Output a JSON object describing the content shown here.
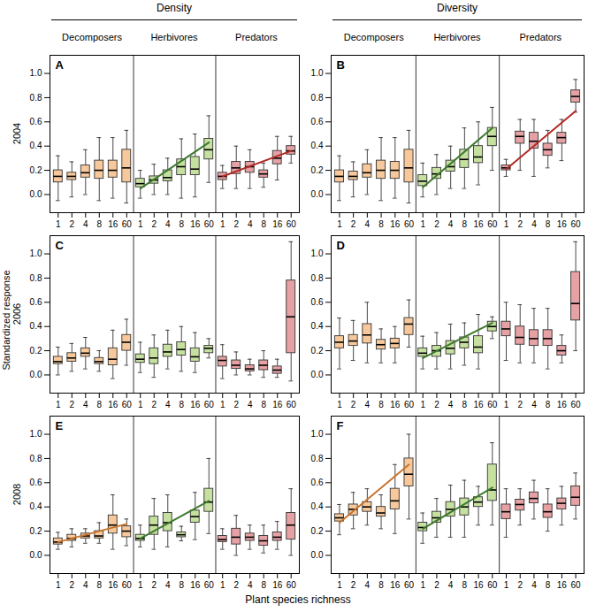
{
  "chart_data": {
    "type": "box",
    "columns": [
      "Density",
      "Diversity"
    ],
    "rows": [
      "2004",
      "2006",
      "2008"
    ],
    "ylabel": "Standardized response",
    "xlabel": "Plant species richness",
    "categories": [
      "1",
      "2",
      "4",
      "8",
      "16",
      "60"
    ],
    "ylim": [
      -0.15,
      1.15
    ],
    "yticks": [
      {
        "value": 0,
        "label": "0.0"
      },
      {
        "value": 0.2,
        "label": "0.2"
      },
      {
        "value": 0.4,
        "label": "0.4"
      },
      {
        "value": 0.6,
        "label": "0.6"
      },
      {
        "value": 0.8,
        "label": "0.8"
      },
      {
        "value": 1,
        "label": "1.0"
      }
    ],
    "groups": [
      {
        "name": "Decomposers",
        "color": "#f7c89b"
      },
      {
        "name": "Herbivores",
        "color": "#c6e0a0"
      },
      {
        "name": "Predators",
        "color": "#e6a1a5"
      }
    ],
    "panels": [
      {
        "title": "A",
        "boxes": [
          {
            "whisker_low": [
              -0.05,
              -0.02,
              0.0,
              -0.05,
              -0.03,
              -0.07
            ],
            "q1": [
              0.1,
              0.12,
              0.14,
              0.13,
              0.14,
              0.1
            ],
            "median": [
              0.15,
              0.15,
              0.18,
              0.2,
              0.2,
              0.22
            ],
            "q3": [
              0.2,
              0.18,
              0.24,
              0.28,
              0.28,
              0.37
            ],
            "whisker_high": [
              0.32,
              0.27,
              0.37,
              0.47,
              0.47,
              0.53
            ]
          },
          {
            "whisker_low": [
              -0.03,
              0.0,
              0.0,
              -0.03,
              -0.02,
              0.1
            ],
            "q1": [
              0.06,
              0.09,
              0.11,
              0.16,
              0.16,
              0.29
            ],
            "median": [
              0.09,
              0.12,
              0.14,
              0.23,
              0.21,
              0.37
            ],
            "q3": [
              0.13,
              0.15,
              0.2,
              0.29,
              0.31,
              0.46
            ],
            "whisker_high": [
              0.2,
              0.25,
              0.3,
              0.46,
              0.5,
              0.65
            ]
          },
          {
            "whisker_low": [
              0.05,
              0.05,
              0.05,
              0.06,
              0.12,
              0.26
            ],
            "q1": [
              0.12,
              0.17,
              0.18,
              0.14,
              0.25,
              0.33
            ],
            "median": [
              0.15,
              0.22,
              0.23,
              0.17,
              0.3,
              0.36
            ],
            "q3": [
              0.18,
              0.27,
              0.27,
              0.2,
              0.36,
              0.4
            ],
            "whisker_high": [
              0.24,
              0.4,
              0.37,
              0.26,
              0.48,
              0.48
            ]
          }
        ],
        "trend_lines": [
          {
            "series": "Herbivores",
            "color": "#3e7a2e",
            "x": [
              "1",
              "60"
            ],
            "values": [
              0.05,
              0.43
            ]
          },
          {
            "series": "Predators",
            "color": "#b22a25",
            "x": [
              "1",
              "60"
            ],
            "values": [
              0.15,
              0.36
            ]
          }
        ]
      },
      {
        "title": "B",
        "boxes": [
          {
            "whisker_low": [
              -0.05,
              -0.02,
              0.0,
              -0.05,
              -0.03,
              -0.07
            ],
            "q1": [
              0.1,
              0.12,
              0.14,
              0.13,
              0.13,
              0.1
            ],
            "median": [
              0.15,
              0.15,
              0.18,
              0.2,
              0.2,
              0.22
            ],
            "q3": [
              0.2,
              0.19,
              0.25,
              0.28,
              0.27,
              0.37
            ],
            "whisker_high": [
              0.32,
              0.27,
              0.37,
              0.47,
              0.47,
              0.53
            ]
          },
          {
            "whisker_low": [
              -0.02,
              0.0,
              0.05,
              0.05,
              0.08,
              0.2
            ],
            "q1": [
              0.07,
              0.13,
              0.19,
              0.22,
              0.26,
              0.4
            ],
            "median": [
              0.11,
              0.17,
              0.23,
              0.29,
              0.31,
              0.48
            ],
            "q3": [
              0.16,
              0.22,
              0.28,
              0.37,
              0.4,
              0.55
            ],
            "whisker_high": [
              0.26,
              0.33,
              0.4,
              0.55,
              0.6,
              0.72
            ]
          },
          {
            "whisker_low": [
              0.15,
              0.2,
              0.15,
              0.22,
              0.28,
              0.68
            ],
            "q1": [
              0.2,
              0.42,
              0.38,
              0.32,
              0.42,
              0.76
            ],
            "median": [
              0.22,
              0.48,
              0.44,
              0.37,
              0.47,
              0.81
            ],
            "q3": [
              0.24,
              0.52,
              0.51,
              0.42,
              0.51,
              0.86
            ],
            "whisker_high": [
              0.29,
              0.62,
              0.62,
              0.53,
              0.62,
              0.95
            ]
          }
        ],
        "trend_lines": [
          {
            "series": "Herbivores",
            "color": "#3e7a2e",
            "x": [
              "1",
              "60"
            ],
            "values": [
              0.06,
              0.55
            ]
          },
          {
            "series": "Predators",
            "color": "#b22a25",
            "x": [
              "1",
              "60"
            ],
            "values": [
              0.21,
              0.69
            ]
          }
        ]
      },
      {
        "title": "C",
        "boxes": [
          {
            "whisker_low": [
              0.0,
              0.03,
              0.05,
              0.03,
              -0.03,
              0.08
            ],
            "q1": [
              0.09,
              0.11,
              0.15,
              0.09,
              0.08,
              0.2
            ],
            "median": [
              0.11,
              0.14,
              0.18,
              0.11,
              0.13,
              0.27
            ],
            "q3": [
              0.15,
              0.18,
              0.22,
              0.14,
              0.22,
              0.33
            ],
            "whisker_high": [
              0.23,
              0.26,
              0.31,
              0.2,
              0.37,
              0.46
            ]
          },
          {
            "whisker_low": [
              0.02,
              -0.02,
              0.05,
              0.03,
              0.02,
              0.14
            ],
            "q1": [
              0.1,
              0.09,
              0.15,
              0.16,
              0.11,
              0.18
            ],
            "median": [
              0.13,
              0.14,
              0.19,
              0.21,
              0.15,
              0.22
            ],
            "q3": [
              0.17,
              0.22,
              0.25,
              0.27,
              0.22,
              0.24
            ],
            "whisker_high": [
              0.27,
              0.33,
              0.37,
              0.4,
              0.35,
              0.3
            ]
          },
          {
            "whisker_low": [
              -0.03,
              0.0,
              0.0,
              -0.02,
              -0.02,
              -0.05
            ],
            "q1": [
              0.07,
              0.05,
              0.03,
              0.04,
              0.01,
              0.18
            ],
            "median": [
              0.12,
              0.08,
              0.05,
              0.08,
              0.04,
              0.48
            ],
            "q3": [
              0.15,
              0.12,
              0.08,
              0.12,
              0.07,
              0.78
            ],
            "whisker_high": [
              0.25,
              0.19,
              0.13,
              0.2,
              0.13,
              1.1
            ]
          }
        ],
        "trend_lines": []
      },
      {
        "title": "D",
        "boxes": [
          {
            "whisker_low": [
              0.05,
              0.12,
              0.1,
              0.1,
              0.1,
              0.23
            ],
            "q1": [
              0.22,
              0.24,
              0.26,
              0.21,
              0.22,
              0.33
            ],
            "median": [
              0.27,
              0.28,
              0.33,
              0.25,
              0.26,
              0.42
            ],
            "q3": [
              0.32,
              0.33,
              0.42,
              0.29,
              0.3,
              0.47
            ],
            "whisker_high": [
              0.47,
              0.45,
              0.6,
              0.38,
              0.4,
              0.62
            ]
          },
          {
            "whisker_low": [
              0.05,
              0.05,
              0.05,
              0.08,
              0.05,
              0.3
            ],
            "q1": [
              0.15,
              0.15,
              0.17,
              0.22,
              0.18,
              0.36
            ],
            "median": [
              0.18,
              0.2,
              0.22,
              0.27,
              0.23,
              0.4
            ],
            "q3": [
              0.22,
              0.24,
              0.28,
              0.31,
              0.32,
              0.44
            ],
            "whisker_high": [
              0.32,
              0.35,
              0.42,
              0.43,
              0.5,
              0.48
            ]
          },
          {
            "whisker_low": [
              0.12,
              0.1,
              0.1,
              0.05,
              0.1,
              0.2
            ],
            "q1": [
              0.32,
              0.25,
              0.24,
              0.24,
              0.16,
              0.45
            ],
            "median": [
              0.38,
              0.31,
              0.3,
              0.3,
              0.2,
              0.59
            ],
            "q3": [
              0.44,
              0.4,
              0.37,
              0.37,
              0.24,
              0.85
            ],
            "whisker_high": [
              0.6,
              0.58,
              0.55,
              0.55,
              0.33,
              1.1
            ]
          }
        ],
        "trend_lines": [
          {
            "series": "Herbivores",
            "color": "#3e7a2e",
            "x": [
              "1",
              "60"
            ],
            "values": [
              0.14,
              0.43
            ]
          }
        ]
      },
      {
        "title": "E",
        "boxes": [
          {
            "whisker_low": [
              0.05,
              0.07,
              0.1,
              0.1,
              0.05,
              0.08
            ],
            "q1": [
              0.09,
              0.12,
              0.14,
              0.14,
              0.18,
              0.15
            ],
            "median": [
              0.11,
              0.14,
              0.16,
              0.16,
              0.25,
              0.2
            ],
            "q3": [
              0.14,
              0.17,
              0.18,
              0.2,
              0.33,
              0.24
            ],
            "whisker_high": [
              0.19,
              0.22,
              0.22,
              0.27,
              0.5,
              0.3
            ]
          },
          {
            "whisker_low": [
              0.07,
              0.05,
              0.07,
              0.12,
              0.13,
              0.18
            ],
            "q1": [
              0.12,
              0.17,
              0.2,
              0.15,
              0.27,
              0.36
            ],
            "median": [
              0.14,
              0.25,
              0.27,
              0.17,
              0.32,
              0.44
            ],
            "q3": [
              0.17,
              0.32,
              0.35,
              0.19,
              0.37,
              0.55
            ],
            "whisker_high": [
              0.25,
              0.47,
              0.5,
              0.24,
              0.52,
              0.8
            ]
          },
          {
            "whisker_low": [
              0.05,
              0.0,
              0.05,
              0.02,
              0.05,
              0.0
            ],
            "q1": [
              0.11,
              0.09,
              0.12,
              0.08,
              0.12,
              0.13
            ],
            "median": [
              0.13,
              0.15,
              0.15,
              0.12,
              0.15,
              0.25
            ],
            "q3": [
              0.16,
              0.22,
              0.18,
              0.16,
              0.19,
              0.35
            ],
            "whisker_high": [
              0.22,
              0.33,
              0.25,
              0.25,
              0.28,
              0.55
            ]
          }
        ],
        "trend_lines": [
          {
            "series": "Decomposers",
            "color": "#c8742d",
            "x": [
              "1",
              "60"
            ],
            "values": [
              0.11,
              0.26
            ]
          },
          {
            "series": "Herbivores",
            "color": "#3e7a2e",
            "x": [
              "1",
              "60"
            ],
            "values": [
              0.14,
              0.45
            ]
          }
        ]
      },
      {
        "title": "F",
        "boxes": [
          {
            "whisker_low": [
              0.17,
              0.22,
              0.25,
              0.22,
              0.18,
              0.3
            ],
            "q1": [
              0.28,
              0.33,
              0.36,
              0.32,
              0.38,
              0.57
            ],
            "median": [
              0.31,
              0.38,
              0.4,
              0.35,
              0.45,
              0.67
            ],
            "q3": [
              0.34,
              0.42,
              0.44,
              0.4,
              0.55,
              0.8
            ],
            "whisker_high": [
              0.42,
              0.52,
              0.55,
              0.5,
              0.75,
              1.0
            ]
          },
          {
            "whisker_low": [
              0.1,
              0.15,
              0.15,
              0.15,
              0.25,
              0.25
            ],
            "q1": [
              0.2,
              0.27,
              0.32,
              0.33,
              0.4,
              0.45
            ],
            "median": [
              0.23,
              0.31,
              0.38,
              0.4,
              0.44,
              0.54
            ],
            "q3": [
              0.27,
              0.36,
              0.44,
              0.47,
              0.48,
              0.75
            ],
            "whisker_high": [
              0.35,
              0.47,
              0.58,
              0.62,
              0.57,
              0.93
            ]
          },
          {
            "whisker_low": [
              0.15,
              0.25,
              0.3,
              0.2,
              0.25,
              0.3
            ],
            "q1": [
              0.3,
              0.37,
              0.43,
              0.31,
              0.38,
              0.41
            ],
            "median": [
              0.36,
              0.42,
              0.47,
              0.36,
              0.43,
              0.48
            ],
            "q3": [
              0.42,
              0.46,
              0.52,
              0.42,
              0.47,
              0.57
            ],
            "whisker_high": [
              0.55,
              0.55,
              0.62,
              0.55,
              0.57,
              0.68
            ]
          }
        ],
        "trend_lines": [
          {
            "series": "Decomposers",
            "color": "#c8742d",
            "x": [
              "1",
              "60"
            ],
            "values": [
              0.27,
              0.75
            ]
          },
          {
            "series": "Herbivores",
            "color": "#3e7a2e",
            "x": [
              "1",
              "60"
            ],
            "values": [
              0.22,
              0.56
            ]
          }
        ]
      }
    ]
  }
}
